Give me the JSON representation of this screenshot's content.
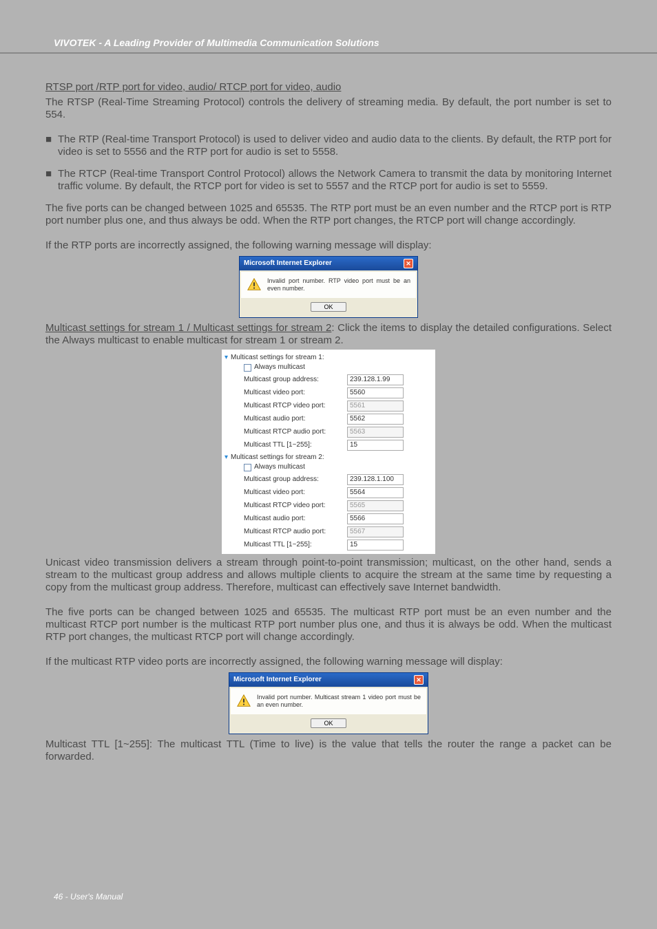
{
  "header": {
    "title": "VIVOTEK - A Leading Provider of Multimedia Communication Solutions"
  },
  "body": {
    "h_rtsp": "RTSP port /RTP port for video, audio/ RTCP port for video, audio",
    "p1": "The RTSP (Real-Time Streaming Protocol) controls the delivery of streaming media. By default, the port number is set to 554.",
    "bullet1": "The RTP (Real-time Transport Protocol) is used to deliver video and audio data to the clients. By default, the RTP port for video is set to 5556 and the RTP port for audio is set to 5558.",
    "bullet2": "The RTCP (Real-time Transport Control Protocol) allows the Network Camera to transmit the data by monitoring Internet traffic volume. By default, the RTCP port for video is set to 5557 and the RTCP port for audio is set to 5559.",
    "p2": "The five ports can be changed between 1025 and 65535. The RTP port must be an even number and the RTCP port is RTP port number plus one, and thus always be odd. When the RTP port changes, the RTCP port will change accordingly.",
    "p3": "If the RTP ports are incorrectly assigned, the following warning message will display:",
    "h_multi_u": "Multicast settings for stream 1 / Multicast settings for stream 2",
    "h_multi_rest": ": Click the items to display the detailed configurations. Select the Always multicast to enable multicast for stream 1 or stream 2.",
    "p_unicast": "Unicast video transmission delivers a stream through point-to-point transmission; multicast, on the other hand, sends a stream to the multicast group address and allows multiple clients to acquire the stream at the same time by requesting a copy from the multicast group address. Therefore, multicast can effectively save Internet bandwidth.",
    "p_five2": "The five ports can be changed between 1025 and 65535. The multicast RTP port must be an even number and the multicast RTCP port number is the multicast RTP port number plus one, and thus it is always be odd. When the multicast RTP port changes, the multicast RTCP port will change accordingly.",
    "p_if2": "If the multicast RTP video ports are incorrectly assigned, the following warning message will display:",
    "p_ttl": "Multicast TTL [1~255]: The multicast TTL (Time to live) is the value that tells the router the range a packet can be forwarded."
  },
  "dialog1": {
    "title": "Microsoft Internet Explorer",
    "msg": "Invalid port number. RTP video port must be an even number.",
    "ok": "OK"
  },
  "dialog2": {
    "title": "Microsoft Internet Explorer",
    "msg": "Invalid port number. Multicast stream 1 video port must be an even number.",
    "ok": "OK"
  },
  "settings": {
    "stream1": {
      "header": "Multicast settings for stream 1:",
      "always": "Always multicast",
      "fields": [
        {
          "label": "Multicast group address:",
          "value": "239.128.1.99",
          "disabled": false
        },
        {
          "label": "Multicast video port:",
          "value": "5560",
          "disabled": false
        },
        {
          "label": "Multicast RTCP video port:",
          "value": "5561",
          "disabled": true
        },
        {
          "label": "Multicast audio port:",
          "value": "5562",
          "disabled": false
        },
        {
          "label": "Multicast RTCP audio port:",
          "value": "5563",
          "disabled": true
        },
        {
          "label": "Multicast TTL [1~255]:",
          "value": "15",
          "disabled": false
        }
      ]
    },
    "stream2": {
      "header": "Multicast settings for stream 2:",
      "always": "Always multicast",
      "fields": [
        {
          "label": "Multicast group address:",
          "value": "239.128.1.100",
          "disabled": false
        },
        {
          "label": "Multicast video port:",
          "value": "5564",
          "disabled": false
        },
        {
          "label": "Multicast RTCP video port:",
          "value": "5565",
          "disabled": true
        },
        {
          "label": "Multicast audio port:",
          "value": "5566",
          "disabled": false
        },
        {
          "label": "Multicast RTCP audio port:",
          "value": "5567",
          "disabled": true
        },
        {
          "label": "Multicast TTL [1~255]:",
          "value": "15",
          "disabled": false
        }
      ]
    }
  },
  "footer": {
    "text": "46 - User's Manual"
  },
  "colors": {
    "page_bg": "#b3b3b3",
    "text": "#4a4a4a",
    "header_text": "#ffffff",
    "dialog_title_bg": "#1a4a9a",
    "close_bg": "#e85a3a",
    "chevron": "#2a8ad8"
  }
}
